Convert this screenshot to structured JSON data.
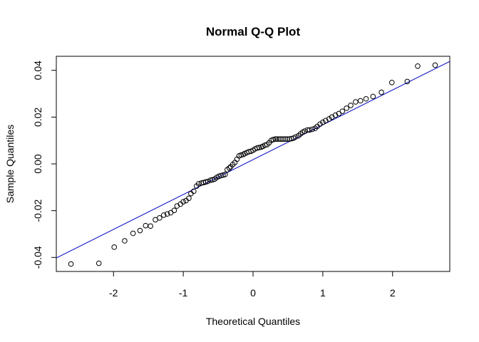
{
  "chart_data": {
    "type": "scatter",
    "title": "Normal Q-Q Plot",
    "xlabel": "Theoretical Quantiles",
    "ylabel": "Sample Quantiles",
    "xlim": [
      -2.82,
      2.82
    ],
    "ylim": [
      -0.046,
      0.046
    ],
    "x_ticks": [
      -2,
      -1,
      0,
      1,
      2
    ],
    "x_tick_labels": [
      "-2",
      "-1",
      "0",
      "1",
      "2"
    ],
    "y_ticks": [
      -0.04,
      -0.02,
      0.0,
      0.02,
      0.04
    ],
    "y_tick_labels": [
      "-0.04",
      "-0.02",
      "0.00",
      "0.02",
      "0.04"
    ],
    "grid": false,
    "legend": "none",
    "point_color": "#000000",
    "line_color": "#0000cc",
    "reference_line": {
      "intercept": 0.0018,
      "slope": 0.0149
    },
    "points": [
      [
        -2.61,
        -0.0428
      ],
      [
        -2.21,
        -0.0425
      ],
      [
        -1.99,
        -0.0356
      ],
      [
        -1.84,
        -0.0329
      ],
      [
        -1.72,
        -0.0297
      ],
      [
        -1.62,
        -0.0285
      ],
      [
        -1.54,
        -0.0264
      ],
      [
        -1.47,
        -0.0266
      ],
      [
        -1.4,
        -0.0239
      ],
      [
        -1.34,
        -0.0231
      ],
      [
        -1.28,
        -0.0219
      ],
      [
        -1.23,
        -0.0214
      ],
      [
        -1.18,
        -0.0209
      ],
      [
        -1.13,
        -0.0199
      ],
      [
        -1.09,
        -0.018
      ],
      [
        -1.04,
        -0.0172
      ],
      [
        -1.0,
        -0.0162
      ],
      [
        -0.96,
        -0.0157
      ],
      [
        -0.92,
        -0.0147
      ],
      [
        -0.89,
        -0.0127
      ],
      [
        -0.85,
        -0.0117
      ],
      [
        -0.81,
        -0.0095
      ],
      [
        -0.78,
        -0.0085
      ],
      [
        -0.74,
        -0.0082
      ],
      [
        -0.71,
        -0.008
      ],
      [
        -0.68,
        -0.0078
      ],
      [
        -0.65,
        -0.0075
      ],
      [
        -0.61,
        -0.007
      ],
      [
        -0.58,
        -0.0068
      ],
      [
        -0.55,
        -0.0065
      ],
      [
        -0.52,
        -0.0058
      ],
      [
        -0.49,
        -0.0053
      ],
      [
        -0.46,
        -0.005
      ],
      [
        -0.43,
        -0.0048
      ],
      [
        -0.4,
        -0.0045
      ],
      [
        -0.37,
        -0.0025
      ],
      [
        -0.34,
        -0.0018
      ],
      [
        -0.32,
        -0.0012
      ],
      [
        -0.29,
        -0.0002
      ],
      [
        -0.26,
        0.0006
      ],
      [
        -0.23,
        0.002
      ],
      [
        -0.2,
        0.0034
      ],
      [
        -0.17,
        0.0038
      ],
      [
        -0.14,
        0.004
      ],
      [
        -0.12,
        0.0044
      ],
      [
        -0.09,
        0.0048
      ],
      [
        -0.06,
        0.0052
      ],
      [
        -0.03,
        0.0054
      ],
      [
        0.0,
        0.0058
      ],
      [
        0.03,
        0.0064
      ],
      [
        0.06,
        0.0068
      ],
      [
        0.09,
        0.007
      ],
      [
        0.12,
        0.0072
      ],
      [
        0.14,
        0.0075
      ],
      [
        0.17,
        0.008
      ],
      [
        0.2,
        0.0082
      ],
      [
        0.23,
        0.009
      ],
      [
        0.26,
        0.01
      ],
      [
        0.29,
        0.0104
      ],
      [
        0.32,
        0.0106
      ],
      [
        0.34,
        0.0106
      ],
      [
        0.37,
        0.0106
      ],
      [
        0.4,
        0.0106
      ],
      [
        0.43,
        0.0106
      ],
      [
        0.46,
        0.0106
      ],
      [
        0.49,
        0.0106
      ],
      [
        0.52,
        0.0106
      ],
      [
        0.55,
        0.0108
      ],
      [
        0.58,
        0.011
      ],
      [
        0.61,
        0.0115
      ],
      [
        0.65,
        0.012
      ],
      [
        0.68,
        0.0128
      ],
      [
        0.71,
        0.0135
      ],
      [
        0.74,
        0.014
      ],
      [
        0.78,
        0.0145
      ],
      [
        0.81,
        0.0145
      ],
      [
        0.85,
        0.0148
      ],
      [
        0.89,
        0.0152
      ],
      [
        0.92,
        0.016
      ],
      [
        0.96,
        0.017
      ],
      [
        1.0,
        0.0178
      ],
      [
        1.04,
        0.0185
      ],
      [
        1.09,
        0.0192
      ],
      [
        1.13,
        0.02
      ],
      [
        1.18,
        0.0208
      ],
      [
        1.23,
        0.0215
      ],
      [
        1.28,
        0.0225
      ],
      [
        1.34,
        0.0238
      ],
      [
        1.4,
        0.025
      ],
      [
        1.47,
        0.0265
      ],
      [
        1.54,
        0.027
      ],
      [
        1.62,
        0.0278
      ],
      [
        1.72,
        0.0288
      ],
      [
        1.84,
        0.0306
      ],
      [
        1.99,
        0.0348
      ],
      [
        2.21,
        0.0352
      ],
      [
        2.36,
        0.0418
      ],
      [
        2.61,
        0.0422
      ]
    ]
  }
}
